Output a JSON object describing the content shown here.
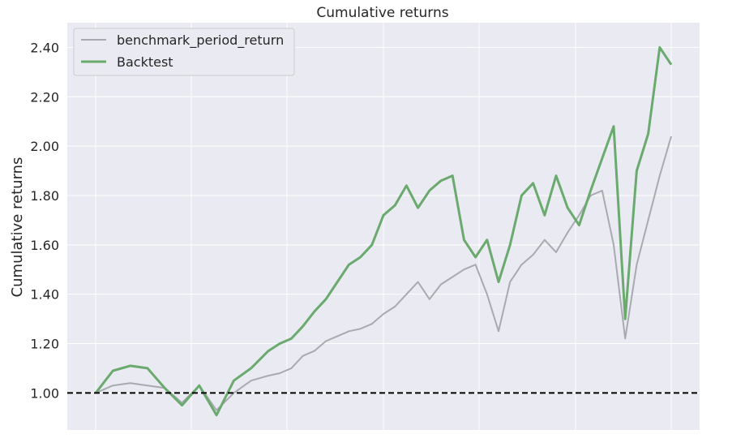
{
  "chart_data": {
    "type": "line",
    "title": "Cumulative returns",
    "xlabel": "",
    "ylabel": "Cumulative returns",
    "ylim": [
      0.85,
      2.5
    ],
    "yticks": [
      1.0,
      1.2,
      1.4,
      1.6,
      1.8,
      2.0,
      2.2,
      2.4
    ],
    "ytick_labels": [
      "1.00",
      "1.20",
      "1.40",
      "1.60",
      "1.80",
      "2.00",
      "2.20",
      "2.40"
    ],
    "grid": true,
    "legend_position": "top-left",
    "reference_line": {
      "y": 1.0,
      "style": "dashed",
      "color": "#000000"
    },
    "series": [
      {
        "name": "benchmark_period_return",
        "color": "#a9a9b0",
        "x": [
          0,
          3,
          6,
          9,
          12,
          15,
          18,
          21,
          24,
          27,
          30,
          32,
          34,
          36,
          38,
          40,
          42,
          44,
          46,
          48,
          50,
          52,
          54,
          56,
          58,
          60,
          62,
          64,
          66,
          68,
          70,
          72,
          74,
          76,
          78,
          80,
          82,
          84,
          86,
          88,
          90,
          92,
          94,
          96,
          98,
          100
        ],
        "values": [
          1.0,
          1.03,
          1.04,
          1.03,
          1.02,
          0.96,
          1.03,
          0.93,
          1.0,
          1.05,
          1.07,
          1.08,
          1.1,
          1.15,
          1.17,
          1.21,
          1.23,
          1.25,
          1.26,
          1.28,
          1.32,
          1.35,
          1.4,
          1.45,
          1.38,
          1.44,
          1.47,
          1.5,
          1.52,
          1.4,
          1.25,
          1.45,
          1.52,
          1.56,
          1.62,
          1.57,
          1.65,
          1.72,
          1.8,
          1.82,
          1.6,
          1.22,
          1.52,
          1.7,
          1.88,
          2.04
        ]
      },
      {
        "name": "Backtest",
        "color": "#6aaa6e",
        "x": [
          0,
          3,
          6,
          9,
          12,
          15,
          18,
          21,
          24,
          27,
          30,
          32,
          34,
          36,
          38,
          40,
          42,
          44,
          46,
          48,
          50,
          52,
          54,
          56,
          58,
          60,
          62,
          64,
          66,
          68,
          70,
          72,
          74,
          76,
          78,
          80,
          82,
          84,
          86,
          88,
          90,
          92,
          94,
          96,
          98,
          100
        ],
        "values": [
          1.0,
          1.09,
          1.11,
          1.1,
          1.02,
          0.95,
          1.03,
          0.91,
          1.05,
          1.1,
          1.17,
          1.2,
          1.22,
          1.27,
          1.33,
          1.38,
          1.45,
          1.52,
          1.55,
          1.6,
          1.72,
          1.76,
          1.84,
          1.75,
          1.82,
          1.86,
          1.88,
          1.62,
          1.55,
          1.62,
          1.45,
          1.6,
          1.8,
          1.85,
          1.72,
          1.88,
          1.75,
          1.68,
          1.82,
          1.95,
          2.08,
          1.3,
          1.9,
          2.05,
          2.4,
          2.33
        ]
      }
    ]
  }
}
